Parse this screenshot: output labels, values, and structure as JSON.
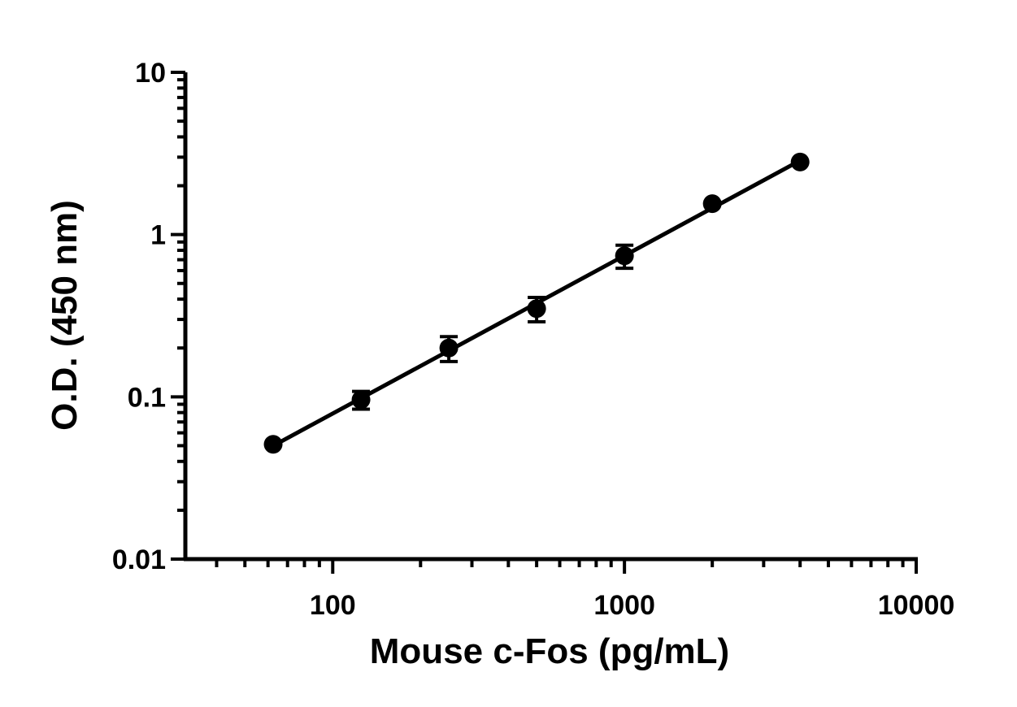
{
  "chart_data": {
    "type": "scatter",
    "title": "",
    "xlabel": "Mouse c-Fos (pg/mL)",
    "ylabel": "O.D. (450 nm)",
    "xscale": "log",
    "yscale": "log",
    "xlim": [
      31.25,
      10000
    ],
    "ylim": [
      0.01,
      10
    ],
    "xticks": [
      {
        "value": 100,
        "label": "100"
      },
      {
        "value": 1000,
        "label": "1000"
      },
      {
        "value": 10000,
        "label": "10000"
      }
    ],
    "yticks": [
      {
        "value": 0.01,
        "label": "0.01"
      },
      {
        "value": 0.1,
        "label": "0.1"
      },
      {
        "value": 1,
        "label": "1"
      },
      {
        "value": 10,
        "label": "10"
      }
    ],
    "grid": false,
    "legend": "none",
    "fit_line": true,
    "series": [
      {
        "points": [
          {
            "x": 62.5,
            "y": 0.051,
            "err": 0
          },
          {
            "x": 125,
            "y": 0.096,
            "err": 0.012
          },
          {
            "x": 250,
            "y": 0.2,
            "err": 0.035
          },
          {
            "x": 500,
            "y": 0.35,
            "err": 0.06
          },
          {
            "x": 1000,
            "y": 0.74,
            "err": 0.12
          },
          {
            "x": 2000,
            "y": 1.55,
            "err": 0
          },
          {
            "x": 4000,
            "y": 2.8,
            "err": 0
          }
        ],
        "color": "#000000"
      }
    ]
  }
}
